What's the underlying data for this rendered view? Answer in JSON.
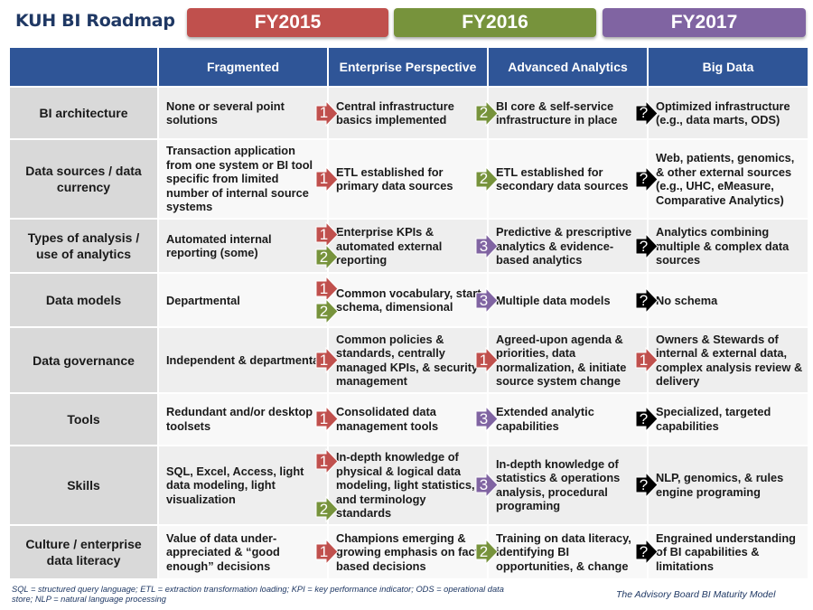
{
  "title": "KUH BI Roadmap",
  "fiscal_years": [
    {
      "label": "FY2015",
      "color": "#c0504d"
    },
    {
      "label": "FY2016",
      "color": "#77933c"
    },
    {
      "label": "FY2017",
      "color": "#8064a2"
    }
  ],
  "header": {
    "col1": "Fragmented",
    "col2": "Enterprise Perspective",
    "col3": "Advanced Analytics",
    "col4": "Big Data"
  },
  "arrow_colors": {
    "1": "#c0504d",
    "2": "#77933c",
    "3": "#8064a2",
    "?": "#000000"
  },
  "rows": [
    {
      "label": "BI architecture",
      "c1": "None or several point solutions",
      "c2": "Central infrastructure basics implemented",
      "c3": "BI core & self-service infrastructure in place",
      "c4": "Optimized infrastructure (e.g., data marts, ODS)",
      "a1": [
        "1"
      ],
      "a2": [
        "2"
      ],
      "a3": [
        "?"
      ]
    },
    {
      "label": "Data sources / data currency",
      "c1": "Transaction application from one system or BI tool specific from limited number of internal source systems",
      "c2": "ETL established for primary data sources",
      "c3": "ETL established for secondary data sources",
      "c4": "Web, patients, genomics, & other external sources (e.g., UHC, eMeasure, Comparative Analytics)",
      "a1": [
        "1"
      ],
      "a2": [
        "2"
      ],
      "a3": [
        "?"
      ]
    },
    {
      "label": "Types of analysis / use of analytics",
      "c1": "Automated internal reporting (some)",
      "c2": "Enterprise KPIs & automated external reporting",
      "c3": "Predictive & prescriptive analytics & evidence-based analytics",
      "c4": "Analytics combining multiple & complex data sources",
      "a1": [
        "1",
        "2"
      ],
      "a2": [
        "3"
      ],
      "a3": [
        "?"
      ]
    },
    {
      "label": "Data models",
      "c1": "Departmental",
      "c2": "Common vocabulary, start schema, dimensional",
      "c3": "Multiple data models",
      "c4": "No schema",
      "a1": [
        "1",
        "2"
      ],
      "a2": [
        "3"
      ],
      "a3": [
        "?"
      ]
    },
    {
      "label": "Data governance",
      "c1": "Independent & departmental",
      "c2": "Common policies & standards, centrally managed KPIs, & security management",
      "c3": "Agreed-upon agenda & priorities, data normalization, & initiate source system change",
      "c4": "Owners & Stewards of internal & external data, complex analysis review & delivery",
      "a1": [
        "1"
      ],
      "a2": [
        "1"
      ],
      "a3": [
        "1"
      ]
    },
    {
      "label": "Tools",
      "c1": "Redundant and/or desktop toolsets",
      "c2": "Consolidated data management tools",
      "c3": "Extended analytic capabilities",
      "c4": "Specialized, targeted capabilities",
      "a1": [
        "1"
      ],
      "a2": [
        "3"
      ],
      "a3": [
        "?"
      ]
    },
    {
      "label": "Skills",
      "c1": "SQL, Excel, Access, light data modeling, light visualization",
      "c2": "In-depth knowledge of physical & logical data modeling, light statistics, and terminology standards",
      "c3": "In-depth knowledge of statistics & operations analysis, procedural programing",
      "c4": "NLP, genomics, & rules engine programing",
      "a1": [
        "1",
        "2"
      ],
      "a2": [
        "3"
      ],
      "a3": [
        "?"
      ]
    },
    {
      "label": "Culture / enterprise data literacy",
      "c1": "Value of data under-appreciated & “good enough” decisions",
      "c2": "Champions emerging & growing emphasis on fact-based decisions",
      "c3": "Training on data literacy, identifying BI opportunities, & change",
      "c4": "Engrained understanding of BI capabilities & limitations",
      "a1": [
        "1"
      ],
      "a2": [
        "2"
      ],
      "a3": [
        "?"
      ]
    }
  ],
  "footnote": "SQL = structured query language; ETL = extraction transformation loading; KPI = key performance indicator; ODS = operational data store; NLP = natural language processing",
  "source": "The Advisory Board BI Maturity Model"
}
